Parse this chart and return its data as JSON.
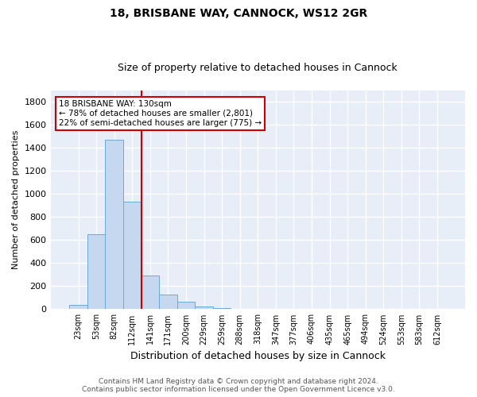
{
  "title_line1": "18, BRISBANE WAY, CANNOCK, WS12 2GR",
  "title_line2": "Size of property relative to detached houses in Cannock",
  "xlabel": "Distribution of detached houses by size in Cannock",
  "ylabel": "Number of detached properties",
  "categories": [
    "23sqm",
    "53sqm",
    "82sqm",
    "112sqm",
    "141sqm",
    "171sqm",
    "200sqm",
    "229sqm",
    "259sqm",
    "288sqm",
    "318sqm",
    "347sqm",
    "377sqm",
    "406sqm",
    "435sqm",
    "465sqm",
    "494sqm",
    "524sqm",
    "553sqm",
    "583sqm",
    "612sqm"
  ],
  "values": [
    38,
    650,
    1470,
    935,
    290,
    127,
    62,
    22,
    12,
    5,
    2,
    2,
    2,
    0,
    0,
    0,
    0,
    0,
    0,
    0,
    0
  ],
  "bar_color": "#c5d8f0",
  "bar_edge_color": "#6aaad4",
  "vline_color": "#cc0000",
  "annotation_text": "18 BRISBANE WAY: 130sqm\n← 78% of detached houses are smaller (2,801)\n22% of semi-detached houses are larger (775) →",
  "annotation_box_color": "white",
  "annotation_box_edge": "#cc0000",
  "ylim": [
    0,
    1900
  ],
  "yticks": [
    0,
    200,
    400,
    600,
    800,
    1000,
    1200,
    1400,
    1600,
    1800
  ],
  "background_color": "#e8eef8",
  "grid_color": "#ffffff",
  "footer_line1": "Contains HM Land Registry data © Crown copyright and database right 2024.",
  "footer_line2": "Contains public sector information licensed under the Open Government Licence v3.0.",
  "title_fontsize": 10,
  "subtitle_fontsize": 9,
  "ylabel_fontsize": 8,
  "xlabel_fontsize": 9,
  "tick_fontsize": 8,
  "xtick_fontsize": 7
}
